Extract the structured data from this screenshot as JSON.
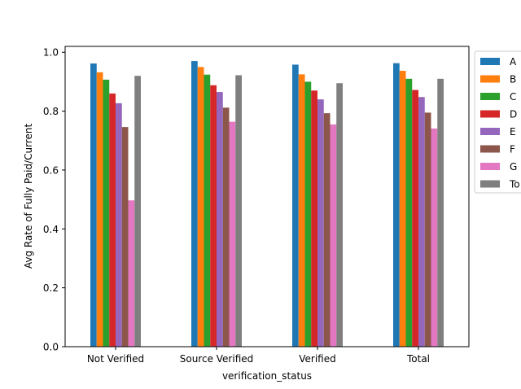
{
  "chart_data": {
    "type": "bar",
    "title": "",
    "xlabel": "verification_status",
    "ylabel": "Avg Rate of Fully Paid/Current",
    "categories": [
      "Not Verified",
      "Source Verified",
      "Verified",
      "Total"
    ],
    "ylim": [
      0,
      1.02
    ],
    "yticks": [
      "0.0",
      "0.2",
      "0.4",
      "0.6",
      "0.8",
      "1.0"
    ],
    "grid": false,
    "legend_position": "outside-right (clipped)",
    "series": [
      {
        "name": "A",
        "legend_label": "A",
        "color": "#1f77b4",
        "values": [
          0.962,
          0.97,
          0.958,
          0.963
        ]
      },
      {
        "name": "B",
        "legend_label": "B",
        "color": "#ff7f0e",
        "values": [
          0.932,
          0.95,
          0.925,
          0.937
        ]
      },
      {
        "name": "C",
        "legend_label": "C",
        "color": "#2ca02c",
        "values": [
          0.907,
          0.924,
          0.9,
          0.91
        ]
      },
      {
        "name": "D",
        "legend_label": "D",
        "color": "#d62728",
        "values": [
          0.86,
          0.888,
          0.87,
          0.872
        ]
      },
      {
        "name": "E",
        "legend_label": "E",
        "color": "#9467bd",
        "values": [
          0.827,
          0.865,
          0.84,
          0.848
        ]
      },
      {
        "name": "F",
        "legend_label": "F",
        "color": "#8c564b",
        "values": [
          0.746,
          0.812,
          0.793,
          0.795
        ]
      },
      {
        "name": "G",
        "legend_label": "G",
        "color": "#e377c2",
        "values": [
          0.497,
          0.764,
          0.755,
          0.741
        ]
      },
      {
        "name": "To",
        "legend_label": "To",
        "color": "#7f7f7f",
        "values": [
          0.92,
          0.922,
          0.895,
          0.91
        ]
      }
    ]
  }
}
